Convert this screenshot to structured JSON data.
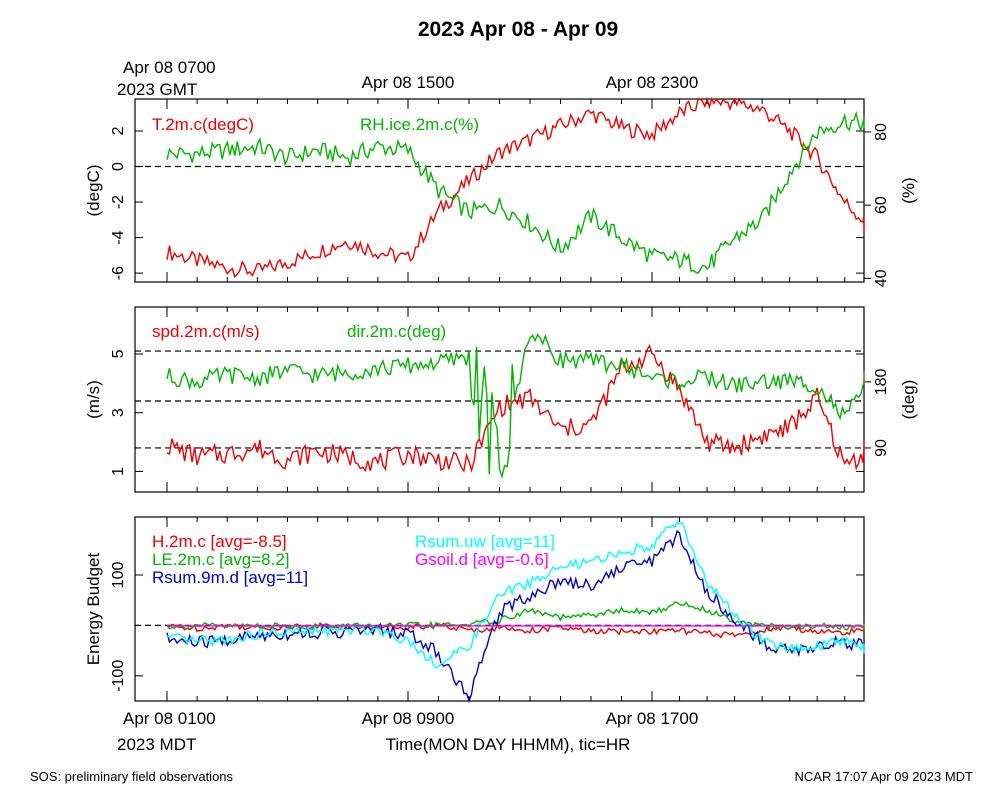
{
  "title": "2023 Apr 08 - Apr 09",
  "gmt_labels": [
    "Apr 08 0700",
    "2023 GMT",
    "Apr 08 1500",
    "Apr 08 2300"
  ],
  "mdt_labels": [
    "Apr 08 0100",
    "2023 MDT",
    "Apr 08 0900",
    "Apr 08 1700"
  ],
  "xlabel": "Time(MON DAY HHMM), tic=HR",
  "footer_left": "SOS: preliminary field observations",
  "footer_right": "NCAR 17:07 Apr 09 2023 MDT",
  "colors": {
    "red": "#ee0000",
    "green": "#00b400",
    "cyan": "#00ffff",
    "blue": "#0000cc",
    "magenta": "#ff00ff"
  },
  "chart_data": [
    {
      "type": "line",
      "xlim_hours": [
        0,
        24
      ],
      "ylabel_left": "(degC)",
      "ylabel_right": "(%)",
      "ylim_left": [
        -6.5,
        3.8
      ],
      "ylim_right": [
        39,
        89
      ],
      "yticks_left": [
        "-6",
        "-4",
        "-2",
        "0",
        "2"
      ],
      "yticks_right": [
        "40",
        "60",
        "80"
      ],
      "yticks_left_values": [
        -6,
        -4,
        -2,
        0,
        2
      ],
      "yticks_right_values": [
        40,
        60,
        80
      ],
      "dashed_lines_left": [
        0
      ],
      "series": [
        {
          "name": "T.2m.c(degC)",
          "color": "#ee0000",
          "axis": "left",
          "x": [
            0,
            1,
            2,
            3,
            4,
            5,
            6,
            7,
            8,
            9,
            10,
            11,
            12,
            13,
            14,
            15,
            16,
            17,
            18,
            19,
            20,
            21,
            22,
            23,
            24
          ],
          "y": [
            -4.8,
            -5.3,
            -5.7,
            -5.9,
            -5.4,
            -4.8,
            -4.2,
            -4.8,
            -5.2,
            -2.5,
            -0.8,
            0.8,
            1.5,
            2.3,
            3.0,
            2.2,
            1.8,
            3.0,
            3.7,
            3.6,
            3.2,
            2.0,
            0.5,
            -2.0,
            -3.5
          ]
        },
        {
          "name": "RH.ice.2m.c(%)",
          "color": "#00b400",
          "axis": "right",
          "x": [
            0,
            1,
            2,
            3,
            4,
            5,
            6,
            7,
            8,
            9,
            10,
            11,
            12,
            13,
            14,
            15,
            16,
            17,
            18,
            19,
            20,
            21,
            22,
            23,
            24
          ],
          "y": [
            74,
            74,
            75,
            76,
            73,
            75,
            73,
            76,
            75,
            64,
            58,
            60,
            55,
            48,
            57,
            51,
            46,
            45,
            43,
            51,
            56,
            69,
            80,
            83,
            82
          ]
        }
      ]
    },
    {
      "type": "line",
      "xlim_hours": [
        0,
        24
      ],
      "ylabel_left": "(m/s)",
      "ylabel_right": "(deg)",
      "ylim_left": [
        0.3,
        6.6
      ],
      "ylim_right": [
        30,
        282
      ],
      "yticks_left": [
        "1",
        "3",
        "5"
      ],
      "yticks_right": [
        "90",
        "180"
      ],
      "yticks_left_values": [
        1,
        3,
        5
      ],
      "yticks_right_values": [
        90,
        180
      ],
      "dashed_lines_left": [
        1.8,
        3.4,
        5.1
      ],
      "series": [
        {
          "name": "spd.2m.c(m/s)",
          "color": "#ee0000",
          "axis": "left",
          "x": [
            0,
            1,
            2,
            3,
            4,
            5,
            6,
            7,
            8,
            9,
            10,
            11,
            12,
            13,
            14,
            15,
            16,
            17,
            18,
            19,
            20,
            21,
            22,
            23,
            24
          ],
          "y": [
            1.9,
            1.5,
            1.6,
            1.8,
            1.4,
            1.7,
            1.5,
            1.3,
            1.6,
            1.4,
            1.2,
            3.2,
            3.5,
            2.4,
            2.6,
            4.5,
            5.0,
            3.8,
            2.0,
            1.8,
            2.2,
            2.5,
            3.5,
            1.2,
            1.8
          ]
        },
        {
          "name": "dir.2m.c(deg)",
          "color": "#00b400",
          "axis": "right",
          "x": [
            0,
            1,
            2,
            3,
            4,
            5,
            6,
            7,
            8,
            9,
            10,
            11,
            12,
            13,
            14,
            15,
            16,
            17,
            18,
            19,
            20,
            21,
            22,
            23,
            24
          ],
          "y": [
            188,
            180,
            190,
            185,
            196,
            189,
            193,
            198,
            202,
            206,
            215,
            60,
            250,
            211,
            208,
            203,
            186,
            180,
            186,
            175,
            180,
            181,
            175,
            130,
            188
          ]
        }
      ]
    },
    {
      "type": "line",
      "xlim_hours": [
        0,
        24
      ],
      "ylabel_left": "Energy Budget",
      "ylim_left": [
        -150,
        215
      ],
      "yticks_left": [
        "-100",
        "100"
      ],
      "yticks_left_values": [
        -100,
        100
      ],
      "dashed_lines_left": [
        0
      ],
      "series": [
        {
          "name": "H.2m.c [avg=-8.5]",
          "color": "#ee0000",
          "x": [
            0,
            1,
            2,
            3,
            4,
            5,
            6,
            7,
            8,
            9,
            10,
            11,
            12,
            13,
            14,
            15,
            16,
            17,
            18,
            19,
            20,
            21,
            22,
            23,
            24
          ],
          "y": [
            -2,
            -6,
            0,
            -5,
            -3,
            0,
            -4,
            -3,
            -2,
            0,
            -10,
            -5,
            -10,
            -5,
            -12,
            -12,
            -12,
            -10,
            -16,
            -20,
            -10,
            -5,
            -12,
            -15,
            -3
          ]
        },
        {
          "name": "LE.2m.c [avg=8.2]",
          "color": "#00b400",
          "x": [
            0,
            1,
            2,
            3,
            4,
            5,
            6,
            7,
            8,
            9,
            10,
            11,
            12,
            13,
            14,
            15,
            16,
            17,
            18,
            19,
            20,
            21,
            22,
            23,
            24
          ],
          "y": [
            -2,
            0,
            -2,
            0,
            -2,
            -2,
            0,
            -2,
            0,
            0,
            2,
            10,
            30,
            15,
            20,
            30,
            25,
            45,
            30,
            10,
            0,
            -5,
            0,
            -5,
            -2
          ]
        },
        {
          "name": "Rsum.9m.d [avg=11]",
          "color": "#0000cc",
          "x": [
            0,
            1,
            2,
            3,
            4,
            5,
            6,
            7,
            8,
            9,
            10,
            11,
            12,
            13,
            14,
            15,
            16,
            17,
            18,
            19,
            20,
            21,
            22,
            23,
            24
          ],
          "y": [
            -28,
            -34,
            -30,
            -20,
            -16,
            -14,
            -12,
            -10,
            -15,
            -55,
            -145,
            30,
            60,
            90,
            80,
            115,
            130,
            180,
            65,
            15,
            -35,
            -50,
            -45,
            -30,
            -50
          ]
        },
        {
          "name": "Rsum.uw [avg=11]",
          "color": "#00ffff",
          "x": [
            0,
            1,
            2,
            3,
            4,
            5,
            6,
            7,
            8,
            9,
            10,
            11,
            12,
            13,
            14,
            15,
            16,
            17,
            18,
            19,
            20,
            21,
            22,
            23,
            24
          ],
          "y": [
            -25,
            -32,
            -28,
            -18,
            -14,
            -12,
            -10,
            -8,
            -30,
            -80,
            -40,
            60,
            85,
            115,
            125,
            145,
            160,
            210,
            85,
            20,
            -30,
            -48,
            -42,
            -28,
            -48
          ]
        },
        {
          "name": "Gsoil.d [avg=-0.6]",
          "color": "#ff00ff",
          "x": [
            0,
            24
          ],
          "y": [
            -1,
            -1
          ]
        }
      ]
    }
  ]
}
